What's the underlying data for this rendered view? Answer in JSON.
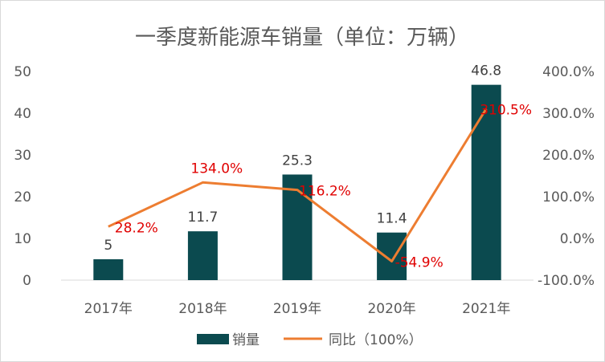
{
  "chart_data": {
    "type": "bar+line",
    "title": "一季度新能源车销量（单位：万辆）",
    "categories": [
      "2017年",
      "2018年",
      "2019年",
      "2020年",
      "2021年"
    ],
    "series": [
      {
        "name": "销量",
        "type": "bar",
        "axis": "left",
        "values": [
          5,
          11.7,
          25.3,
          11.4,
          46.8
        ],
        "labels": [
          "5",
          "11.7",
          "25.3",
          "11.4",
          "46.8"
        ],
        "color": "#0b4a4f"
      },
      {
        "name": "同比（100%）",
        "type": "line",
        "axis": "right",
        "values": [
          28.2,
          134.0,
          116.2,
          -54.9,
          310.5
        ],
        "labels": [
          "28.2%",
          "134.0%",
          "116.2%",
          "-54.9%",
          "310.5%"
        ],
        "color": "#ed7d31",
        "label_color": "#e00000"
      }
    ],
    "y_left": {
      "ylim": [
        0,
        50
      ],
      "ticks": [
        "0",
        "10",
        "20",
        "30",
        "40",
        "50"
      ]
    },
    "y_right": {
      "ylim": [
        -100,
        400
      ],
      "ticks": [
        "-100.0%",
        "0.0%",
        "100.0%",
        "200.0%",
        "300.0%",
        "400.0%"
      ]
    },
    "legend": "bottom",
    "grid": false
  }
}
